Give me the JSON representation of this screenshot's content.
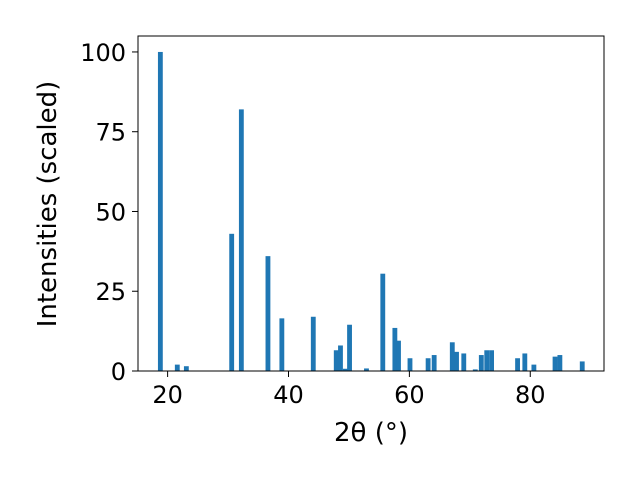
{
  "chart_data": {
    "type": "bar",
    "title": "",
    "xlabel": "2θ (°)",
    "ylabel": "Intensities (scaled)",
    "xlim": [
      15.1,
      92.2
    ],
    "ylim": [
      0,
      105
    ],
    "xticks": [
      20,
      40,
      60,
      80
    ],
    "yticks": [
      0,
      25,
      50,
      75,
      100
    ],
    "grid": false,
    "legend": "none",
    "bar_color": "#1f77b4",
    "bar_width": 0.8,
    "x": [
      18.8,
      21.6,
      23.1,
      30.6,
      32.2,
      36.6,
      38.9,
      44.1,
      47.9,
      48.6,
      49.4,
      50.1,
      52.9,
      55.6,
      57.6,
      58.2,
      60.1,
      63.1,
      64.1,
      67.1,
      67.8,
      69.0,
      70.9,
      71.9,
      72.8,
      73.6,
      77.9,
      79.1,
      80.6,
      84.1,
      84.9,
      88.6
    ],
    "values": [
      100,
      2,
      1.5,
      43,
      82,
      36,
      16.5,
      17,
      6.5,
      8,
      0.7,
      14.5,
      0.8,
      30.5,
      13.5,
      9.5,
      4,
      4,
      5,
      9,
      6,
      5.5,
      0.5,
      5,
      6.5,
      6.5,
      4,
      5.5,
      2,
      4.5,
      5,
      3
    ]
  }
}
